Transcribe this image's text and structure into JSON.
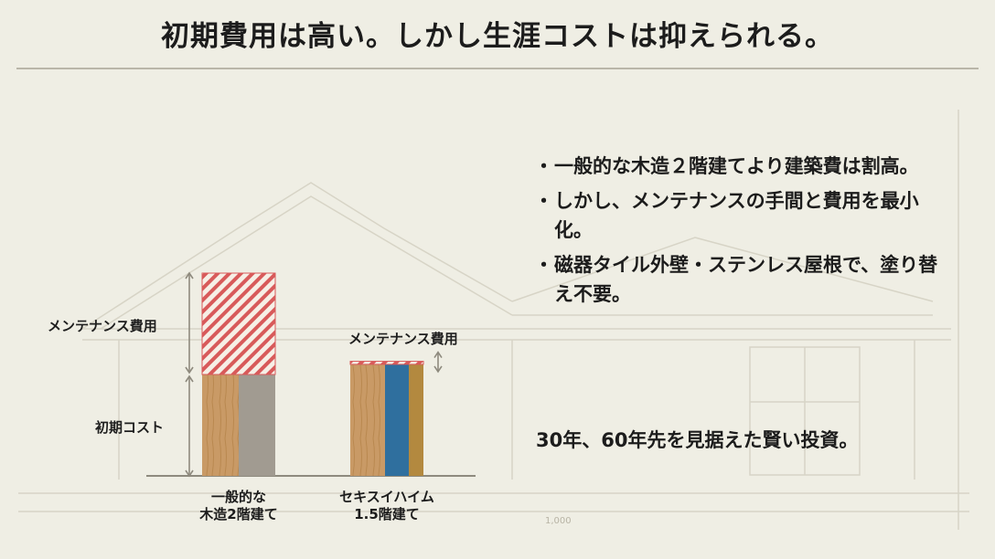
{
  "title": "初期費用は高い。しかし生涯コストは抑えられる。",
  "chart_data": {
    "type": "bar",
    "categories": [
      "一般的な\n木造2階建て",
      "セキスイハイム\n1.5階建て"
    ],
    "series": [
      {
        "name": "初期コスト",
        "values": [
          1.0,
          1.1
        ]
      },
      {
        "name": "メンテナンス費用",
        "values": [
          1.0,
          0.03
        ]
      }
    ],
    "annotations": {
      "maint_left": "メンテナンス費用",
      "maint_right": "メンテナンス費用",
      "initial_left": "初期コスト"
    },
    "ylim": [
      0,
      2.0
    ],
    "grid": false,
    "colors": {
      "wood": "#c99a66",
      "gray_panel": "#a19b91",
      "hatch": "#d85a5a",
      "blue_panel": "#2f6f9e",
      "gold_panel": "#b3893f"
    }
  },
  "bullets": [
    {
      "dot": "・",
      "text": "一般的な木造２階建てより建築費は割高。"
    },
    {
      "dot": "・",
      "text": "しかし、メンテナンスの手間と費用を最小化。"
    },
    {
      "dot": "・",
      "text": "磁器タイル外壁・ステンレス屋根で、塗り替え不要。"
    }
  ],
  "closing": "30年、60年先を見据えた賢い投資。",
  "bg_dimension_label": "1,000"
}
